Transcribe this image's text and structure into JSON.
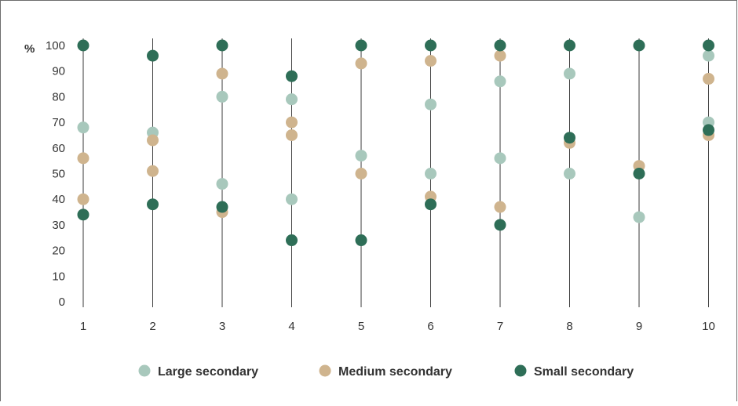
{
  "chart_data": {
    "type": "scatter",
    "ylabel": "%",
    "ylim": [
      0,
      100
    ],
    "yticks": [
      "0",
      "10",
      "20",
      "30",
      "40",
      "50",
      "60",
      "70",
      "80",
      "90",
      "100"
    ],
    "categories": [
      "1",
      "2",
      "3",
      "4",
      "5",
      "6",
      "7",
      "8",
      "9",
      "10"
    ],
    "grid": false,
    "legend_position": "bottom",
    "series": [
      {
        "name": "Large secondary",
        "color": "#a8c8bc",
        "points": [
          {
            "x": "1",
            "y": 68
          },
          {
            "x": "2",
            "y": 66
          },
          {
            "x": "3",
            "y": 80
          },
          {
            "x": "3",
            "y": 46
          },
          {
            "x": "4",
            "y": 79
          },
          {
            "x": "4",
            "y": 40
          },
          {
            "x": "5",
            "y": 57
          },
          {
            "x": "6",
            "y": 77
          },
          {
            "x": "6",
            "y": 50
          },
          {
            "x": "7",
            "y": 86
          },
          {
            "x": "7",
            "y": 56
          },
          {
            "x": "8",
            "y": 89
          },
          {
            "x": "8",
            "y": 50
          },
          {
            "x": "9",
            "y": 33
          },
          {
            "x": "10",
            "y": 96
          },
          {
            "x": "10",
            "y": 70
          }
        ]
      },
      {
        "name": "Medium secondary",
        "color": "#cfb48e",
        "points": [
          {
            "x": "1",
            "y": 56
          },
          {
            "x": "1",
            "y": 40
          },
          {
            "x": "2",
            "y": 63
          },
          {
            "x": "2",
            "y": 51
          },
          {
            "x": "3",
            "y": 89
          },
          {
            "x": "3",
            "y": 35
          },
          {
            "x": "4",
            "y": 70
          },
          {
            "x": "4",
            "y": 65
          },
          {
            "x": "5",
            "y": 93
          },
          {
            "x": "5",
            "y": 50
          },
          {
            "x": "6",
            "y": 94
          },
          {
            "x": "6",
            "y": 41
          },
          {
            "x": "7",
            "y": 96
          },
          {
            "x": "7",
            "y": 37
          },
          {
            "x": "8",
            "y": 62
          },
          {
            "x": "9",
            "y": 53
          },
          {
            "x": "10",
            "y": 87
          },
          {
            "x": "10",
            "y": 65
          }
        ]
      },
      {
        "name": "Small secondary",
        "color": "#2e6e57",
        "points": [
          {
            "x": "1",
            "y": 100
          },
          {
            "x": "1",
            "y": 34
          },
          {
            "x": "2",
            "y": 96
          },
          {
            "x": "2",
            "y": 38
          },
          {
            "x": "3",
            "y": 100
          },
          {
            "x": "3",
            "y": 37
          },
          {
            "x": "4",
            "y": 88
          },
          {
            "x": "4",
            "y": 24
          },
          {
            "x": "5",
            "y": 100
          },
          {
            "x": "5",
            "y": 24
          },
          {
            "x": "6",
            "y": 100
          },
          {
            "x": "6",
            "y": 38
          },
          {
            "x": "7",
            "y": 100
          },
          {
            "x": "7",
            "y": 30
          },
          {
            "x": "8",
            "y": 100
          },
          {
            "x": "8",
            "y": 64
          },
          {
            "x": "9",
            "y": 100
          },
          {
            "x": "9",
            "y": 50
          },
          {
            "x": "10",
            "y": 100
          },
          {
            "x": "10",
            "y": 67
          }
        ]
      }
    ]
  }
}
